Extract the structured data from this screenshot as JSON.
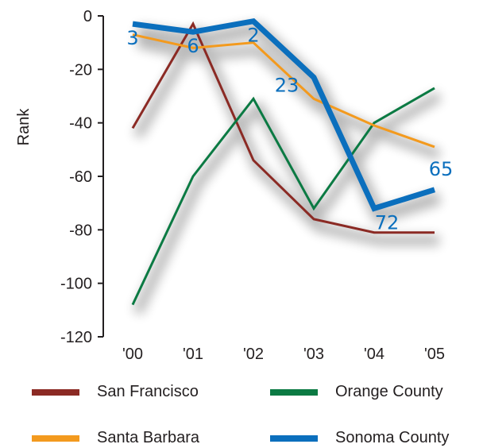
{
  "chart_data": {
    "type": "line",
    "categories": [
      "'00",
      "'01",
      "'02",
      "'03",
      "'04",
      "'05"
    ],
    "ylabel": "Rank",
    "xlabel": "",
    "ylim": [
      -120,
      0
    ],
    "yticks": [
      0,
      -20,
      -40,
      -60,
      -80,
      -100,
      -120
    ],
    "grid": false,
    "legend_position": "bottom",
    "series": [
      {
        "name": "San Francisco",
        "color": "#8b2a24",
        "values": [
          -42,
          -3,
          -54,
          -76,
          -81,
          -81
        ]
      },
      {
        "name": "Orange County",
        "color": "#0b7a43",
        "values": [
          -108,
          -60,
          -31,
          -72,
          -40,
          -27
        ]
      },
      {
        "name": "Santa Barbara",
        "color": "#f39a1e",
        "values": [
          -7,
          -12,
          -10,
          -31,
          -41,
          -49
        ]
      },
      {
        "name": "Sonoma County",
        "color": "#0b6fbd",
        "values": [
          -3,
          -6,
          -2,
          -23,
          -72,
          -65
        ],
        "data_labels": [
          "3",
          "6",
          "2",
          "23",
          "72",
          "65"
        ]
      }
    ]
  },
  "legend": {
    "items": [
      {
        "label": "San Francisco",
        "color": "#8b2a24"
      },
      {
        "label": "Orange County",
        "color": "#0b7a43"
      },
      {
        "label": "Santa Barbara",
        "color": "#f39a1e"
      },
      {
        "label": "Sonoma County",
        "color": "#0b6fbd"
      }
    ]
  }
}
